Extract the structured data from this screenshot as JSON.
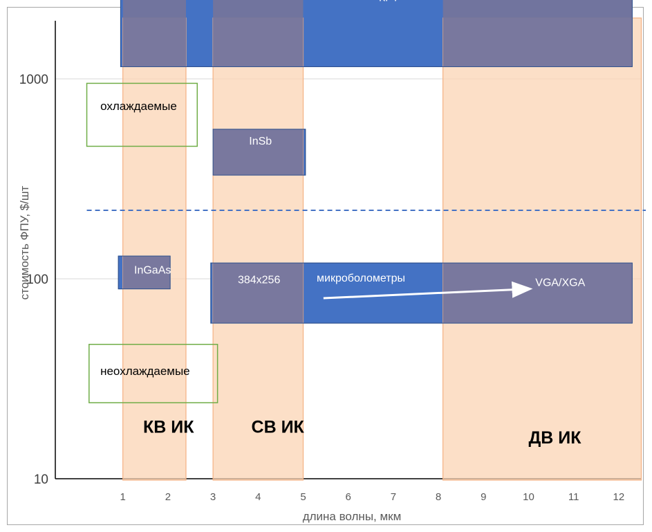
{
  "chart_data": {
    "type": "range-chart",
    "title": "",
    "xlabel": "длина волны, мкм",
    "ylabel": "стоимость ФПУ, $/шт",
    "x_ticks": [
      "1",
      "2",
      "3",
      "4",
      "5",
      "6",
      "7",
      "8",
      "9",
      "10",
      "11",
      "12"
    ],
    "xlim": [
      0,
      12.7
    ],
    "y_scale": "log",
    "ylim": [
      10,
      3500
    ],
    "y_ticks": [
      {
        "value": 10,
        "label": "10"
      },
      {
        "value": 100,
        "label": "100"
      },
      {
        "value": 1000,
        "label": "1000"
      }
    ],
    "threshold_line": {
      "style": "dashed",
      "value": 220,
      "x_range": [
        0.2,
        12.6
      ]
    },
    "spectral_bands": [
      {
        "id": "kv",
        "label": "КВ  ИК",
        "x_range": [
          1.0,
          2.4
        ],
        "label_at": {
          "x": 1.45,
          "y": 17
        }
      },
      {
        "id": "sv",
        "label": "СВ ИК",
        "x_range": [
          3.0,
          5.0
        ],
        "label_at": {
          "x": 3.85,
          "y": 17
        }
      },
      {
        "id": "dv",
        "label": "ДВ ИК",
        "x_range": [
          8.1,
          12.5
        ],
        "label_at": {
          "x": 10.0,
          "y": 15
        }
      }
    ],
    "detectors": [
      {
        "id": "krt",
        "label": "КРТ",
        "x_range": [
          0.95,
          12.3
        ],
        "y_range": [
          1150,
          3300
        ],
        "label_at": {
          "x": 6.9,
          "y": 2450
        }
      },
      {
        "id": "insb",
        "label": "InSb",
        "x_range": [
          3.0,
          5.05
        ],
        "y_range": [
          330,
          560
        ],
        "label_at": {
          "x": 3.8,
          "y": 470
        }
      },
      {
        "id": "ingaas",
        "label": "InGaAs",
        "x_range": [
          0.9,
          2.05
        ],
        "y_range": [
          89,
          130
        ],
        "label_at": {
          "x": 1.25,
          "y": 106
        }
      },
      {
        "id": "microbolometers",
        "label": "микроболометры",
        "x_range": [
          2.95,
          12.3
        ],
        "y_range": [
          60,
          120
        ],
        "label_at": {
          "x": 5.3,
          "y": 97
        }
      }
    ],
    "annotations": [
      {
        "id": "res-low",
        "text": "384x256",
        "at": {
          "x": 3.55,
          "y": 95
        }
      },
      {
        "id": "res-high",
        "text": "VGA/XGA",
        "at": {
          "x": 10.15,
          "y": 92
        }
      }
    ],
    "trend_arrow": {
      "from": {
        "x": 5.45,
        "y": 80
      },
      "to": {
        "x": 10.0,
        "y": 89
      }
    },
    "category_boxes": [
      {
        "id": "cooled",
        "label": "охлаждаемые",
        "x_range": [
          0.2,
          2.65
        ],
        "y_range": [
          460,
          950
        ],
        "label_at": {
          "x": 0.5,
          "y": 700
        }
      },
      {
        "id": "uncooled",
        "label": "неохлаждаемые",
        "x_range": [
          0.25,
          3.1
        ],
        "y_range": [
          24,
          47
        ],
        "label_at": {
          "x": 0.5,
          "y": 33
        }
      }
    ],
    "colors": {
      "band_fill": "#fbd4b4",
      "band_stroke": "#f4b183",
      "detector_fill": "#4472c4",
      "detector_stroke": "#2f528f",
      "overlap_fill": "#74749c",
      "category_box_stroke": "#70ad47",
      "threshold_line": "#4472c4",
      "arrow": "#ffffff"
    }
  }
}
